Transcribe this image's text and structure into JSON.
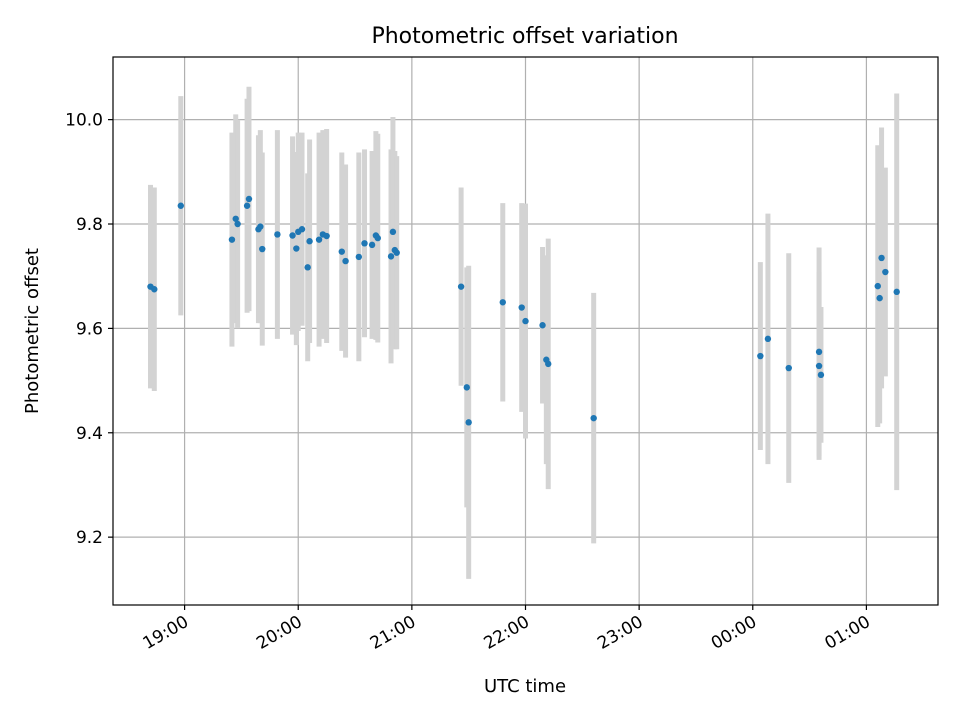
{
  "chart_data": {
    "type": "scatter",
    "title": "Photometric offset variation",
    "xlabel": "UTC time",
    "ylabel": "Photometric offset",
    "x_ticks": [
      "19:00",
      "20:00",
      "21:00",
      "22:00",
      "23:00",
      "00:00",
      "01:00"
    ],
    "x_tick_hours": [
      19,
      20,
      21,
      22,
      23,
      24,
      25
    ],
    "xlim_hours": [
      18.37,
      25.63
    ],
    "y_ticks": [
      "9.2",
      "9.4",
      "9.6",
      "9.8",
      "10.0"
    ],
    "y_tick_values": [
      9.2,
      9.4,
      9.6,
      9.8,
      10.0
    ],
    "ylim": [
      9.07,
      10.12
    ],
    "grid": true,
    "colors": {
      "points": "#1f77b4",
      "errorbars": "#d3d3d3",
      "grid": "#b0b0b0"
    },
    "series": [
      {
        "x": [
          "18:42",
          "18:44",
          "18:58",
          "19:25",
          "19:27",
          "19:28",
          "19:33",
          "19:34",
          "19:39",
          "19:40",
          "19:41",
          "19:49",
          "19:57",
          "19:59",
          "20:00",
          "20:02",
          "20:05",
          "20:06",
          "20:11",
          "20:13",
          "20:15",
          "20:23",
          "20:25",
          "20:32",
          "20:35",
          "20:39",
          "20:41",
          "20:42",
          "20:49",
          "20:50",
          "20:51",
          "20:52",
          "21:26",
          "21:29",
          "21:30",
          "21:48",
          "21:58",
          "22:00",
          "22:09",
          "22:11",
          "22:12",
          "22:36",
          "00:04",
          "00:08",
          "00:19",
          "00:35",
          "00:35",
          "00:36",
          "01:06",
          "01:07",
          "01:08",
          "01:10",
          "01:16"
        ],
        "y": [
          9.68,
          9.675,
          9.835,
          9.77,
          9.81,
          9.8,
          9.835,
          9.848,
          9.79,
          9.795,
          9.752,
          9.78,
          9.778,
          9.753,
          9.785,
          9.79,
          9.717,
          9.767,
          9.77,
          9.78,
          9.777,
          9.747,
          9.729,
          9.737,
          9.763,
          9.76,
          9.778,
          9.773,
          9.738,
          9.785,
          9.75,
          9.745,
          9.68,
          9.487,
          9.42,
          9.65,
          9.64,
          9.614,
          9.606,
          9.54,
          9.532,
          9.428,
          9.547,
          9.58,
          9.524,
          9.555,
          9.528,
          9.511,
          9.681,
          9.658,
          9.735,
          9.708,
          9.67
        ],
        "error": [
          0.195,
          0.195,
          0.21,
          0.205,
          0.2,
          0.2,
          0.205,
          0.215,
          0.18,
          0.185,
          0.185,
          0.2,
          0.19,
          0.185,
          0.19,
          0.185,
          0.18,
          0.195,
          0.205,
          0.2,
          0.205,
          0.19,
          0.185,
          0.2,
          0.18,
          0.18,
          0.2,
          0.2,
          0.205,
          0.22,
          0.19,
          0.185,
          0.19,
          0.23,
          0.3,
          0.19,
          0.2,
          0.225,
          0.15,
          0.2,
          0.24,
          0.24,
          0.18,
          0.24,
          0.22,
          0.2,
          0.18,
          0.13,
          0.27,
          0.24,
          0.25,
          0.2,
          0.38
        ]
      }
    ]
  }
}
